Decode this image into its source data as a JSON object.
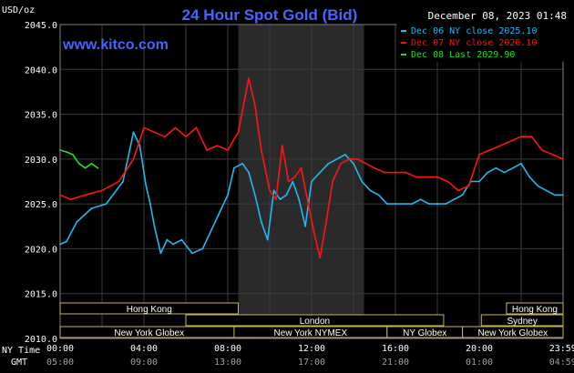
{
  "header": {
    "unit": "USD/oz",
    "title": "24 Hour Spot Gold (Bid)",
    "date": "December 08, 2023 01:48",
    "site": "www.kitco.com"
  },
  "colors": {
    "background": "#000000",
    "grid": "#3c3c3c",
    "title": "#4a64ff",
    "site": "#4a64ff",
    "series_dec06": "#22b8f0",
    "series_dec07": "#ff1414",
    "series_dec08": "#20e020",
    "text": "#ffffff",
    "highlight": "#2a2a2a",
    "session_border": "#c8b45a",
    "time_gmt": "#a0a0a0"
  },
  "legend": [
    {
      "label": "Dec 06 NY close 2025.10",
      "color": "#22b8f0"
    },
    {
      "label": "Dec 07 NY close 2020.10",
      "color": "#ff1414"
    },
    {
      "label": "Dec 08 Last 2029.90",
      "color": "#20e020"
    }
  ],
  "sessions": [
    {
      "label": "Hong Kong",
      "start": 0,
      "end": 8.5,
      "row": 0
    },
    {
      "label": "London",
      "start": 6,
      "end": 18.3,
      "row": 1
    },
    {
      "label": "New York Globex",
      "start": 0,
      "end": 8.5,
      "row": 2
    },
    {
      "label": "New York NYMEX",
      "start": 8.3,
      "end": 15.6,
      "row": 2
    },
    {
      "label": "NY Globex",
      "start": 15.6,
      "end": 19.2,
      "row": 2
    },
    {
      "label": "Sydney",
      "start": 20.1,
      "end": 24,
      "row": 1
    },
    {
      "label": "Hong Kong",
      "start": 21.3,
      "end": 24,
      "row": 0
    },
    {
      "label": "New York Globex",
      "start": 19.2,
      "end": 24,
      "row": 2
    }
  ],
  "time_axis": {
    "ny_label": "NY Time",
    "gmt_label": "GMT",
    "ny_ticks": [
      "00:00",
      "04:00",
      "08:00",
      "12:00",
      "16:00",
      "20:00",
      "23:59"
    ],
    "gmt_ticks": [
      "05:00",
      "09:00",
      "13:00",
      "17:00",
      "21:00",
      "01:00",
      "04:59"
    ]
  },
  "chart_data": {
    "type": "line",
    "title": "24 Hour Spot Gold (Bid)",
    "ylabel": "USD/oz",
    "ylim": [
      2010,
      2045
    ],
    "y_ticks": [
      2010,
      2015,
      2020,
      2025,
      2030,
      2035,
      2040,
      2045
    ],
    "xlim": [
      0,
      24
    ],
    "x_unit": "NY time hour",
    "highlight_range": [
      8.5,
      14.5
    ],
    "grid": true,
    "legend_position": "top-right",
    "series": [
      {
        "name": "Dec 06 NY close 2025.10",
        "color": "#22b8f0",
        "x": [
          0,
          0.3,
          0.8,
          1.5,
          2.2,
          3.0,
          3.5,
          3.8,
          4.1,
          4.3,
          4.5,
          4.8,
          5.1,
          5.4,
          5.8,
          6.3,
          6.8,
          7.2,
          7.6,
          8.0,
          8.3,
          8.7,
          9.0,
          9.3,
          9.6,
          9.9,
          10.2,
          10.5,
          10.8,
          11.1,
          11.4,
          11.7,
          12.0,
          12.4,
          12.8,
          13.2,
          13.6,
          14.0,
          14.4,
          14.8,
          15.2,
          15.6,
          16.0,
          16.4,
          16.8,
          17.2,
          17.6,
          18.0,
          18.4,
          18.8,
          19.2,
          19.6,
          20.0,
          20.4,
          20.8,
          21.2,
          21.6,
          22.0,
          22.4,
          22.8,
          23.2,
          23.6,
          23.99
        ],
        "y": [
          2020.5,
          2020.8,
          2023.0,
          2024.5,
          2025.0,
          2027.5,
          2033.0,
          2031.5,
          2027.0,
          2025.0,
          2022.5,
          2019.5,
          2021.0,
          2020.5,
          2021.0,
          2019.5,
          2020.0,
          2022.0,
          2024.0,
          2026.0,
          2029.0,
          2029.5,
          2028.5,
          2026.0,
          2023.0,
          2021.0,
          2026.5,
          2025.5,
          2026.0,
          2027.5,
          2025.5,
          2022.5,
          2027.5,
          2028.5,
          2029.5,
          2030.0,
          2030.5,
          2029.5,
          2027.5,
          2026.5,
          2026.0,
          2025.0,
          2025.0,
          2025.0,
          2025.0,
          2025.5,
          2025.0,
          2025.0,
          2025.0,
          2025.5,
          2026.0,
          2027.5,
          2027.5,
          2028.5,
          2029.0,
          2028.5,
          2029.0,
          2029.5,
          2028.0,
          2027.0,
          2026.5,
          2026.0,
          2026.0
        ]
      },
      {
        "name": "Dec 07 NY close 2020.10",
        "color": "#ff1414",
        "x": [
          0,
          0.5,
          1.2,
          2.0,
          2.8,
          3.5,
          4.0,
          4.5,
          5.0,
          5.5,
          6.0,
          6.5,
          7.0,
          7.5,
          8.0,
          8.5,
          9.0,
          9.3,
          9.6,
          10.0,
          10.3,
          10.6,
          10.9,
          11.2,
          11.5,
          11.8,
          12.1,
          12.4,
          12.7,
          13.0,
          13.4,
          13.8,
          14.2,
          14.6,
          15.0,
          15.5,
          16.0,
          16.5,
          17.0,
          17.5,
          18.0,
          18.5,
          19.0,
          19.5,
          20.0,
          20.5,
          21.0,
          21.5,
          22.0,
          22.5,
          23.0,
          23.5,
          23.99
        ],
        "y": [
          2026.0,
          2025.5,
          2026.0,
          2026.5,
          2027.5,
          2030.0,
          2033.5,
          2033.0,
          2032.5,
          2033.5,
          2032.5,
          2033.5,
          2031.0,
          2031.5,
          2031.0,
          2033.0,
          2039.0,
          2036.0,
          2031.0,
          2026.5,
          2025.5,
          2031.5,
          2027.5,
          2028.0,
          2029.0,
          2025.5,
          2022.0,
          2019.0,
          2023.0,
          2027.5,
          2029.5,
          2030.0,
          2030.0,
          2029.5,
          2029.0,
          2028.5,
          2028.5,
          2028.5,
          2028.0,
          2028.0,
          2028.0,
          2027.5,
          2026.5,
          2027.0,
          2030.5,
          2031.0,
          2031.5,
          2032.0,
          2032.5,
          2032.5,
          2031.0,
          2030.5,
          2030.0
        ]
      },
      {
        "name": "Dec 08 Last 2029.90",
        "color": "#20e020",
        "x": [
          0,
          0.3,
          0.6,
          0.9,
          1.2,
          1.5,
          1.8
        ],
        "y": [
          2031.0,
          2030.8,
          2030.5,
          2029.5,
          2029.0,
          2029.5,
          2029.0
        ]
      }
    ]
  }
}
